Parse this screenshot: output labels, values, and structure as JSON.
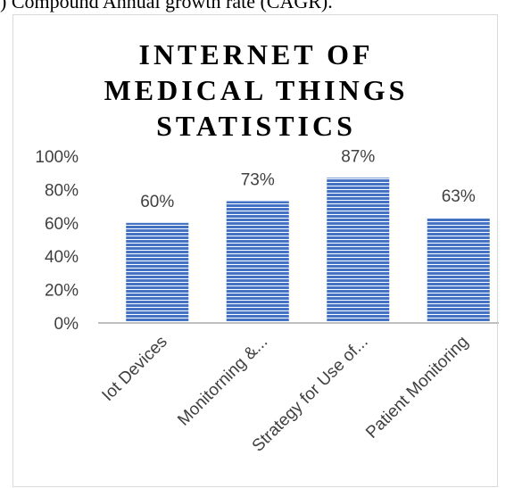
{
  "caption": {
    "text": ") Compound Annual growth rate (CAGR)."
  },
  "colors": {
    "bar_fill": "#4472c4",
    "bar_stripe": "#ffffff",
    "axis": "#bfbfbf",
    "text": "#404040",
    "frame": "#d9d9d9"
  },
  "chart_data": {
    "type": "bar",
    "title_lines": [
      "INTERNET OF",
      "MEDICAL THINGS",
      "STATISTICS"
    ],
    "categories": [
      "Iot Devices",
      "Monitorning &...",
      "Strategy for Use of...",
      "Patient Monitoring"
    ],
    "values": [
      60,
      73,
      87,
      63
    ],
    "data_labels": [
      "60%",
      "73%",
      "87%",
      "63%"
    ],
    "y_ticks": [
      "0%",
      "20%",
      "40%",
      "60%",
      "80%",
      "100%"
    ],
    "ylim": [
      0,
      100
    ],
    "xlabel": "",
    "ylabel": "",
    "grid": false,
    "legend": "none"
  }
}
